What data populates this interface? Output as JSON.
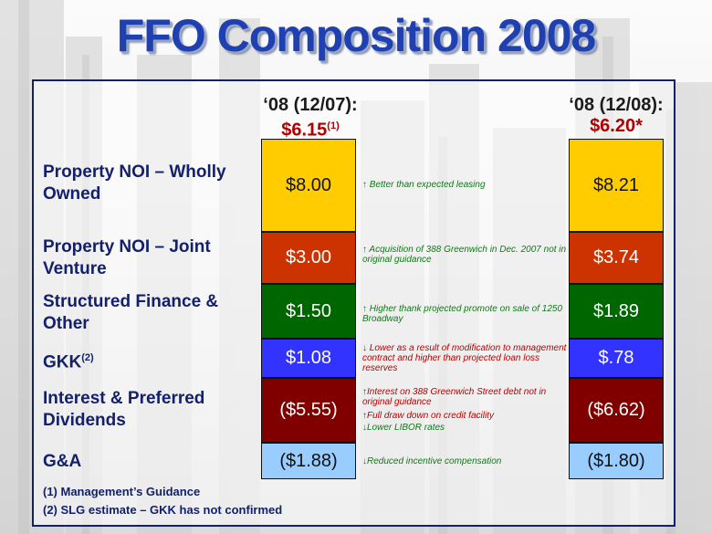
{
  "title": "FFO Composition 2008",
  "chart_data": {
    "type": "table",
    "columns": [
      {
        "line1": "‘08 (12/07):",
        "value": "$6.15",
        "footnote_ref": "(1)",
        "asterisk": ""
      },
      {
        "line1": "‘08 (12/08):",
        "value": "$6.20",
        "footnote_ref": "",
        "asterisk": "*"
      }
    ],
    "rows": [
      {
        "label": "Property NOI – Wholly Owned",
        "sup": "",
        "v0708": "$8.00",
        "v0808": "$8.21",
        "color": "#ffcc00",
        "notes": [
          {
            "dir": "up",
            "text": "↑ Better  than expected leasing"
          }
        ]
      },
      {
        "label": "Property NOI – Joint Venture",
        "sup": "",
        "v0708": "$3.00",
        "v0808": "$3.74",
        "color": "#cc3300",
        "notes": [
          {
            "dir": "up",
            "text": "↑ Acquisition of 388 Greenwich in Dec. 2007 not in original guidance"
          }
        ]
      },
      {
        "label": "Structured Finance & Other",
        "sup": "",
        "v0708": "$1.50",
        "v0808": "$1.89",
        "color": "#006600",
        "notes": [
          {
            "dir": "up",
            "text": "↑ Higher thank projected promote on sale of 1250 Broadway"
          }
        ]
      },
      {
        "label": "GKK",
        "sup": "(2)",
        "v0708": "$1.08",
        "v0808": "$.78",
        "color": "#3333ff",
        "notes": [
          {
            "dir": "down",
            "text": "↓ Lower as a result of modification to management contract and higher than projected loan loss reserves"
          }
        ]
      },
      {
        "label": "Interest & Preferred Dividends",
        "sup": "",
        "v0708": "($5.55)",
        "v0808": "($6.62)",
        "color": "#800000",
        "notes": [
          {
            "dir": "down",
            "text": "↑Interest on 388 Greenwich Street debt not in original guidance"
          },
          {
            "dir": "down",
            "text": "↑Full draw down on credit facility"
          },
          {
            "dir": "up",
            "text": "↓Lower LIBOR rates"
          }
        ]
      },
      {
        "label": "G&A",
        "sup": "",
        "v0708": "($1.88)",
        "v0808": "($1.80)",
        "color": "#99ccff",
        "notes": [
          {
            "dir": "up",
            "text": "↓Reduced incentive compensation"
          }
        ]
      }
    ]
  },
  "footnotes": [
    "(1) Management’s Guidance",
    "(2) SLG estimate – GKK has not confirmed"
  ]
}
